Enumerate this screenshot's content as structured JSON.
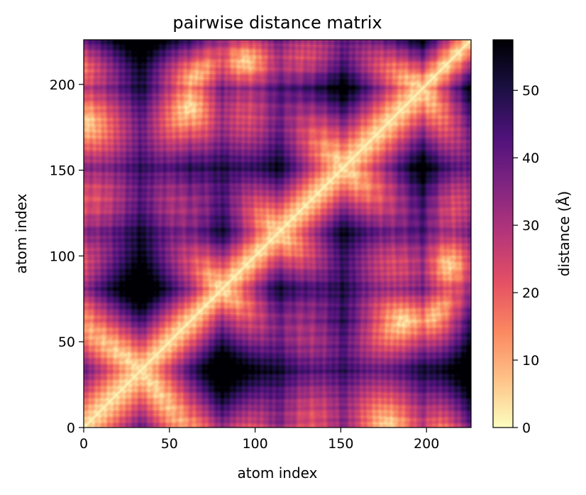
{
  "chart_data": {
    "type": "heatmap",
    "title": "pairwise distance matrix",
    "xlabel": "atom index",
    "ylabel": "atom index",
    "xlim": [
      0,
      226
    ],
    "ylim": [
      0,
      226
    ],
    "x_ticks": [
      0,
      50,
      100,
      150,
      200
    ],
    "y_ticks": [
      0,
      50,
      100,
      150,
      200
    ],
    "colormap": "magma_r",
    "colorbar": {
      "label": "distance (Å)",
      "range": [
        0,
        57.5
      ],
      "ticks": [
        0,
        10,
        20,
        30,
        40,
        50
      ]
    },
    "n_atoms": 226,
    "distance_hotspots": [
      {
        "i": 33,
        "j": 80,
        "distance": 57
      },
      {
        "i": 33,
        "j": 113,
        "distance": 52
      },
      {
        "i": 33,
        "j": 151,
        "distance": 54
      },
      {
        "i": 33,
        "j": 225,
        "distance": 57
      },
      {
        "i": 80,
        "j": 113,
        "distance": 45
      },
      {
        "i": 80,
        "j": 151,
        "distance": 48
      },
      {
        "i": 80,
        "j": 197,
        "distance": 44
      },
      {
        "i": 113,
        "j": 151,
        "distance": 50
      },
      {
        "i": 113,
        "j": 225,
        "distance": 54
      },
      {
        "i": 151,
        "j": 197,
        "distance": 45
      },
      {
        "i": 0,
        "j": 33,
        "distance": 40
      },
      {
        "i": 62,
        "j": 80,
        "distance": 38
      }
    ],
    "diagonal_distance": 0
  }
}
